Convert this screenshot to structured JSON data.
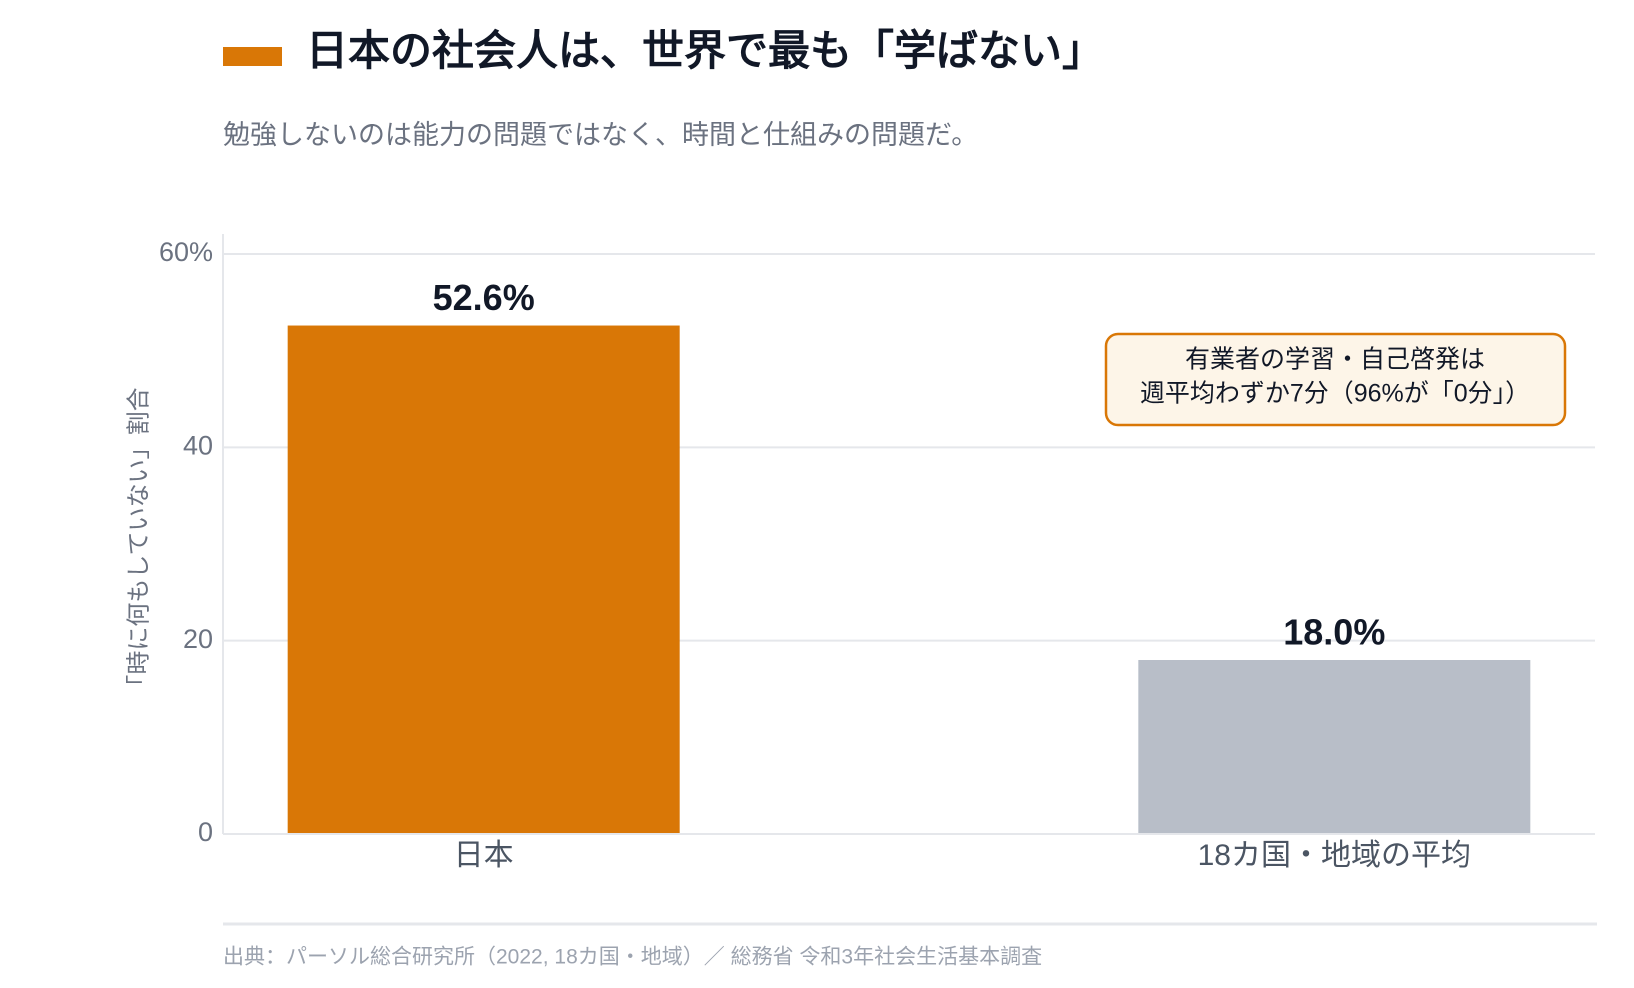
{
  "chart_data": {
    "type": "bar",
    "title": "日本の社会人は、世界で最も「学ばない」",
    "subtitle": "勉強しないのは能力の問題ではなく、時間と仕組みの問題だ。",
    "y_axis_label": "「時に何もしていない」割合",
    "categories": [
      "日本",
      "18カ国・地域の平均"
    ],
    "values": [
      52.6,
      18.0
    ],
    "value_labels": [
      "52.6%",
      "18.0%"
    ],
    "colors": [
      "#d97706",
      "#b8bec8"
    ],
    "ylim": [
      0,
      60
    ],
    "yticks": [
      0,
      20,
      40,
      {
        "value": 60,
        "label": "60%"
      }
    ],
    "grid": true,
    "annotation": [
      "有業者の学習・自己啓発は",
      "週平均わずか7分（96%が「0分」）"
    ],
    "source": "出典：パーソル総合研究所（2022, 18カ国・地域）／ 総務省 令和3年社会生活基本調査"
  }
}
